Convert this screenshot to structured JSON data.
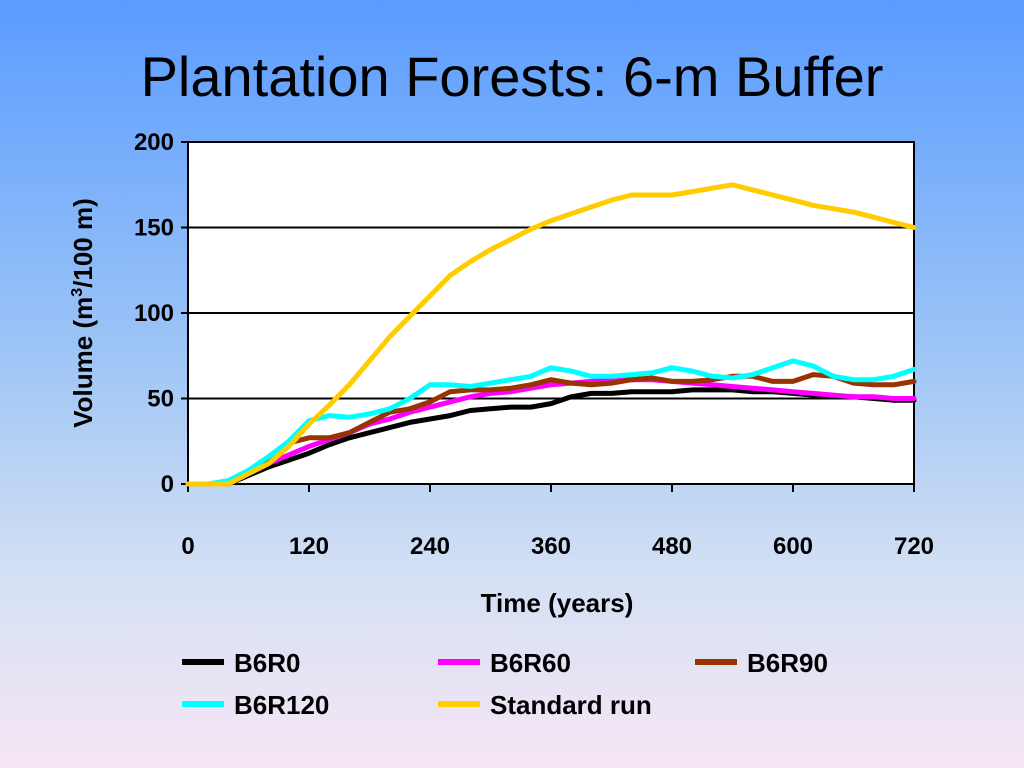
{
  "title": "Plantation Forests: 6-m Buffer",
  "chart_data": {
    "type": "line",
    "title": "Plantation Forests: 6-m Buffer",
    "xlabel": "Time (years)",
    "ylabel_parts": [
      "Volume (m",
      "3",
      "/100 m)"
    ],
    "ylabel": "Volume (m3/100 m)",
    "xlim": [
      0,
      720
    ],
    "ylim": [
      0,
      200
    ],
    "xticks": [
      0,
      120,
      240,
      360,
      480,
      600,
      720
    ],
    "yticks": [
      0,
      50,
      100,
      150,
      200
    ],
    "grid": "horizontal",
    "legend_position": "bottom",
    "x": [
      0,
      20,
      40,
      60,
      80,
      100,
      120,
      140,
      160,
      180,
      200,
      220,
      240,
      260,
      280,
      300,
      320,
      340,
      360,
      380,
      400,
      420,
      440,
      460,
      480,
      500,
      520,
      540,
      560,
      580,
      600,
      620,
      640,
      660,
      680,
      700,
      720
    ],
    "series": [
      {
        "name": "B6R0",
        "color": "#000000",
        "values": [
          0,
          0,
          0,
          5,
          10,
          14,
          18,
          23,
          27,
          30,
          33,
          36,
          38,
          40,
          43,
          44,
          45,
          45,
          47,
          51,
          53,
          53,
          54,
          54,
          54,
          55,
          55,
          55,
          54,
          54,
          53,
          52,
          51,
          51,
          50,
          49,
          49
        ]
      },
      {
        "name": "B6R60",
        "color": "#ff00ff",
        "values": [
          0,
          0,
          0,
          6,
          12,
          17,
          22,
          26,
          30,
          35,
          38,
          42,
          45,
          48,
          51,
          53,
          54,
          56,
          58,
          59,
          60,
          61,
          61,
          61,
          60,
          59,
          58,
          57,
          56,
          55,
          54,
          53,
          52,
          51,
          51,
          50,
          50
        ]
      },
      {
        "name": "B6R90",
        "color": "#993300",
        "values": [
          0,
          0,
          0,
          7,
          15,
          24,
          27,
          27,
          30,
          36,
          42,
          44,
          48,
          54,
          55,
          55,
          56,
          58,
          61,
          59,
          58,
          59,
          61,
          62,
          60,
          60,
          61,
          63,
          63,
          60,
          60,
          64,
          63,
          59,
          58,
          58,
          60
        ]
      },
      {
        "name": "B6R120",
        "color": "#00ffff",
        "values": [
          0,
          0,
          2,
          8,
          16,
          25,
          37,
          40,
          39,
          41,
          44,
          50,
          58,
          58,
          57,
          59,
          61,
          63,
          68,
          66,
          63,
          63,
          64,
          65,
          68,
          66,
          63,
          62,
          64,
          68,
          72,
          69,
          63,
          61,
          61,
          63,
          67
        ]
      },
      {
        "name": "Standard run",
        "color": "#ffcc00",
        "values": [
          0,
          0,
          0,
          6,
          12,
          22,
          35,
          46,
          58,
          72,
          86,
          98,
          110,
          122,
          130,
          137,
          143,
          149,
          154,
          158,
          162,
          166,
          169,
          169,
          169,
          171,
          173,
          175,
          172,
          169,
          166,
          163,
          161,
          159,
          156,
          153,
          150
        ]
      }
    ]
  }
}
